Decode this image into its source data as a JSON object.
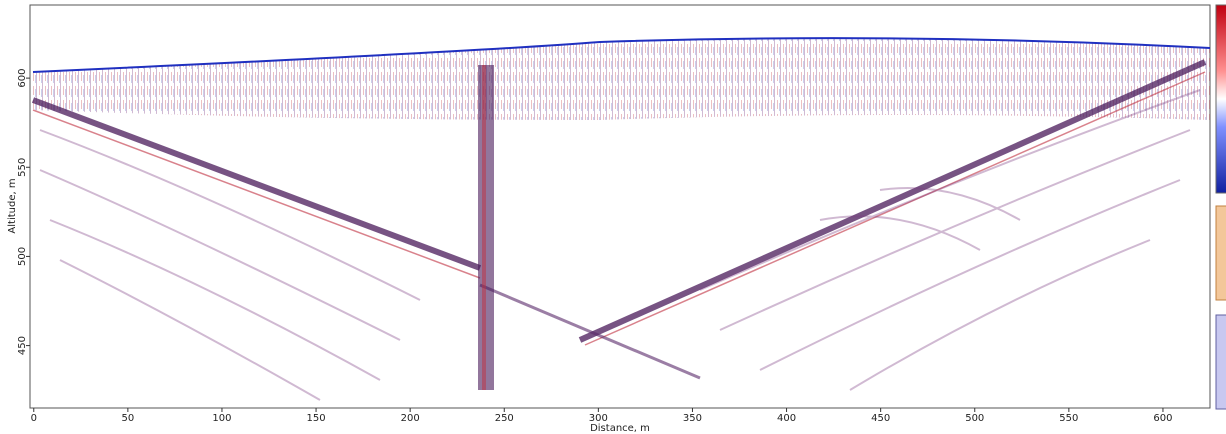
{
  "chart_data": {
    "type": "radargram",
    "x_label": "Distance, m",
    "y_label": "Altitude, m",
    "xlim": [
      -2,
      625
    ],
    "xticks": [
      0,
      50,
      100,
      150,
      200,
      250,
      300,
      350,
      400,
      450,
      500,
      550,
      600
    ],
    "ylim": [
      415,
      641
    ],
    "yticks": [
      450,
      500,
      550,
      600
    ]
  }
}
